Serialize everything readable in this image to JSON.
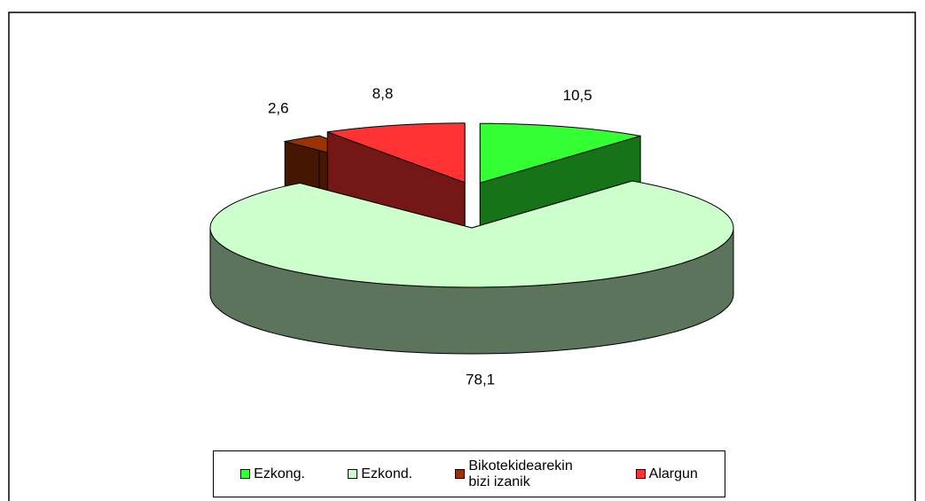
{
  "chart_data": {
    "type": "pie3d",
    "categories": [
      "Ezkong.",
      "Ezkond.",
      "Bikotekidearekin bizi izanik",
      "Alargun"
    ],
    "values": [
      10.5,
      78.1,
      2.6,
      8.8
    ],
    "value_labels": [
      "10,5",
      "78,1",
      "2,6",
      "8,8"
    ],
    "colors": [
      "#33ff33",
      "#ccffcc",
      "#993300",
      "#ff3333"
    ],
    "legend": "bottom"
  }
}
